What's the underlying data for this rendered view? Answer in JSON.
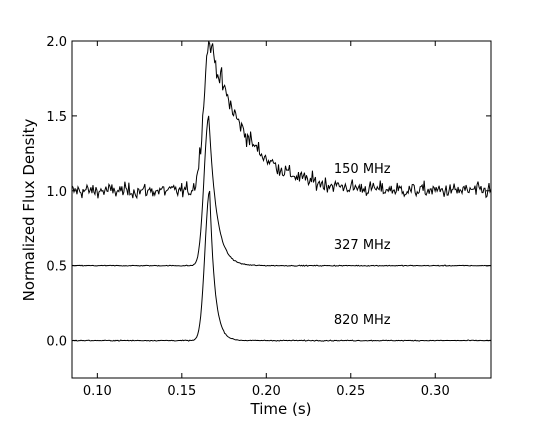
{
  "chart_data": {
    "type": "line",
    "title": "",
    "xlabel": "Time (s)",
    "ylabel": "Normalized Flux Density",
    "xlim": [
      0.085,
      0.333
    ],
    "ylim": [
      -0.25,
      2.0
    ],
    "xticks": [
      0.1,
      0.15,
      0.2,
      0.25,
      0.3
    ],
    "xtick_labels": [
      "0.10",
      "0.15",
      "0.20",
      "0.25",
      "0.30"
    ],
    "yticks": [
      0.0,
      0.5,
      1.0,
      1.5,
      2.0
    ],
    "ytick_labels": [
      "0.0",
      "0.5",
      "1.0",
      "1.5",
      "2.0"
    ],
    "grid": false,
    "line_color": "#000000",
    "series": [
      {
        "name": "150 MHz",
        "label_position": [
          0.24,
          1.12
        ],
        "baseline": 1.0,
        "peak_time": 0.1665,
        "peak_height": 1.0,
        "rise_sigma": 0.0035,
        "decay_tau": 0.022,
        "noise": 0.025
      },
      {
        "name": "327 MHz",
        "label_position": [
          0.24,
          0.61
        ],
        "baseline": 0.5,
        "peak_time": 0.166,
        "peak_height": 1.0,
        "rise_sigma": 0.0028,
        "decay_tau": 0.0045,
        "noise": 0.0015
      },
      {
        "name": "820 MHz",
        "label_position": [
          0.24,
          0.11
        ],
        "baseline": 0.0,
        "peak_time": 0.1665,
        "peak_height": 1.0,
        "rise_sigma": 0.0028,
        "decay_tau": 0.003,
        "noise": 0.0015
      }
    ]
  }
}
